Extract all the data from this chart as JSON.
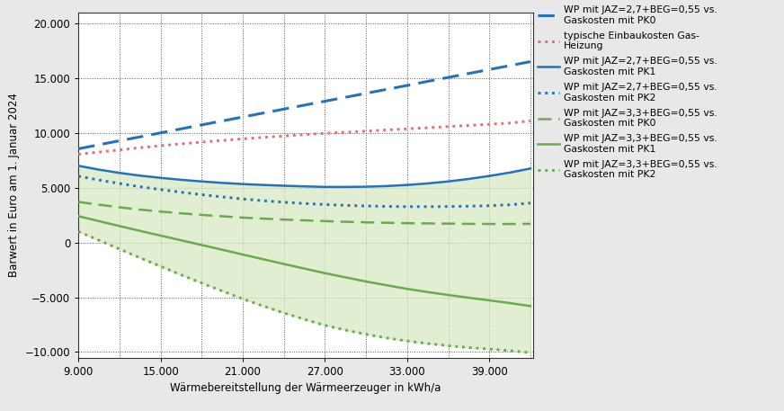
{
  "x": [
    9000,
    10500,
    12000,
    13500,
    15000,
    16500,
    18000,
    19500,
    21000,
    22500,
    24000,
    25500,
    27000,
    28500,
    30000,
    31500,
    33000,
    34500,
    36000,
    37500,
    39000,
    40500,
    42000
  ],
  "blue_dashed": [
    8550,
    8920,
    9280,
    9640,
    10000,
    10370,
    10730,
    11090,
    11450,
    11810,
    12170,
    12530,
    12890,
    13250,
    13610,
    13970,
    14330,
    14700,
    15060,
    15420,
    15780,
    16140,
    16500
  ],
  "pink_dotted": [
    8050,
    8250,
    8450,
    8650,
    8830,
    9000,
    9160,
    9310,
    9460,
    9590,
    9720,
    9840,
    9960,
    10060,
    10160,
    10270,
    10370,
    10470,
    10580,
    10680,
    10790,
    10900,
    11100
  ],
  "blue_solid": [
    7000,
    6650,
    6350,
    6100,
    5900,
    5720,
    5570,
    5440,
    5330,
    5250,
    5180,
    5120,
    5070,
    5070,
    5090,
    5150,
    5250,
    5390,
    5570,
    5800,
    6070,
    6380,
    6750
  ],
  "blue_dotted": [
    6050,
    5700,
    5380,
    5090,
    4830,
    4590,
    4360,
    4160,
    3970,
    3810,
    3670,
    3560,
    3460,
    3390,
    3330,
    3290,
    3270,
    3270,
    3280,
    3310,
    3360,
    3440,
    3600
  ],
  "green_dashed": [
    3700,
    3450,
    3210,
    3000,
    2820,
    2660,
    2520,
    2390,
    2270,
    2180,
    2090,
    2020,
    1950,
    1890,
    1840,
    1800,
    1760,
    1740,
    1720,
    1700,
    1690,
    1690,
    1700
  ],
  "green_solid": [
    2400,
    1950,
    1500,
    1060,
    630,
    200,
    -230,
    -660,
    -1100,
    -1530,
    -1960,
    -2380,
    -2800,
    -3180,
    -3560,
    -3900,
    -4230,
    -4520,
    -4790,
    -5040,
    -5280,
    -5530,
    -5800
  ],
  "green_dotted": [
    1000,
    200,
    -600,
    -1400,
    -2180,
    -2950,
    -3700,
    -4430,
    -5150,
    -5800,
    -6430,
    -7010,
    -7560,
    -7990,
    -8380,
    -8710,
    -8990,
    -9220,
    -9420,
    -9590,
    -9720,
    -9870,
    -10050
  ],
  "fill_upper": [
    7000,
    6650,
    6350,
    6100,
    5900,
    5720,
    5570,
    5440,
    5330,
    5250,
    5180,
    5120,
    5070,
    5070,
    5090,
    5150,
    5250,
    5390,
    5570,
    5800,
    6070,
    6380,
    6750
  ],
  "fill_lower": [
    1000,
    200,
    -600,
    -1400,
    -2180,
    -2950,
    -3700,
    -4430,
    -5150,
    -5800,
    -6430,
    -7010,
    -7560,
    -7990,
    -8380,
    -8710,
    -8990,
    -9220,
    -9420,
    -9590,
    -9720,
    -9870,
    -10050
  ],
  "blue_color": "#2472b8",
  "green_color": "#6aaa4f",
  "pink_color": "#e07070",
  "fill_color": "#d5e8c0",
  "background_color": "#e8e8e8",
  "plot_bg_color": "#ffffff",
  "xlabel": "Wärmebereitstellung der Wärmeerzeuger in kWh/a",
  "ylabel": "Barwert in Euro am 1. Januar 2024",
  "yticks": [
    -10000,
    -5000,
    0,
    5000,
    10000,
    15000,
    20000
  ],
  "xticks": [
    9000,
    15000,
    21000,
    27000,
    33000,
    39000
  ],
  "xlim": [
    9000,
    42200
  ],
  "ylim": [
    -10500,
    21000
  ],
  "legend_labels": [
    "WP mit JAZ=2,7+BEG=0,55 vs.\nGaskosten mit PK0",
    "typische Einbaukosten Gas-\nHeizung",
    "WP mit JAZ=2,7+BEG=0,55 vs.\nGaskosten mit PK1",
    "WP mit JAZ=2,7+BEG=0,55 vs.\nGaskosten mit PK2",
    "WP mit JAZ=3,3+BEG=0,55 vs.\nGaskosten mit PK0",
    "WP mit JAZ=3,3+BEG=0,55 vs.\nGaskosten mit PK1",
    "WP mit JAZ=3,3+BEG=0,55 vs.\nGaskosten mit PK2"
  ],
  "legend_fontsize": 7.8,
  "tick_fontsize": 8.5,
  "label_fontsize": 8.5,
  "lw": 1.8
}
